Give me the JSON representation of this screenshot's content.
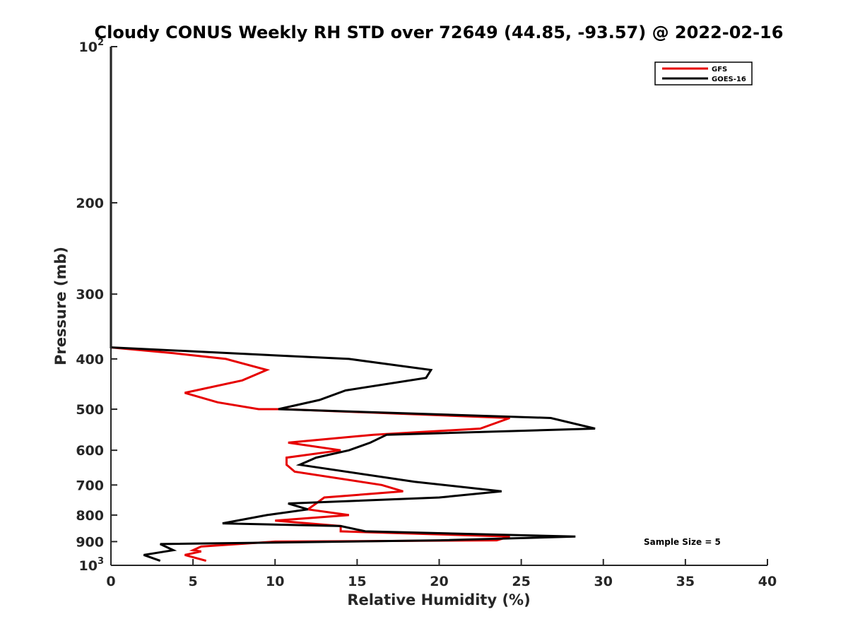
{
  "chart_data": {
    "type": "line",
    "title": "Cloudy CONUS Weekly RH STD over 72649 (44.85, -93.57) @ 2022-02-16",
    "xlabel": "Relative Humidity (%)",
    "ylabel": "Pressure (mb)",
    "xlim": [
      0,
      40
    ],
    "ylim": [
      100,
      1000
    ],
    "y_scale": "log",
    "y_reversed": true,
    "grid": false,
    "legend_position": "top-right",
    "x_ticks": [
      "0",
      "5",
      "10",
      "15",
      "20",
      "25",
      "30",
      "35",
      "40"
    ],
    "y_ticks": [
      {
        "value": 100,
        "base": "10",
        "exp": "2"
      },
      {
        "value": 200,
        "label": "200"
      },
      {
        "value": 300,
        "label": "300"
      },
      {
        "value": 400,
        "label": "400"
      },
      {
        "value": 500,
        "label": "500"
      },
      {
        "value": 600,
        "label": "600"
      },
      {
        "value": 700,
        "label": "700"
      },
      {
        "value": 800,
        "label": "800"
      },
      {
        "value": 900,
        "label": "900"
      },
      {
        "value": 1000,
        "base": "10",
        "exp": "3"
      }
    ],
    "series": [
      {
        "name": "GFS",
        "color": "#e60000",
        "points": [
          {
            "x": 0,
            "y": 100
          },
          {
            "x": 0,
            "y": 380
          },
          {
            "x": 3.8,
            "y": 390
          },
          {
            "x": 7,
            "y": 400
          },
          {
            "x": 9.5,
            "y": 420
          },
          {
            "x": 8,
            "y": 440
          },
          {
            "x": 4.5,
            "y": 465
          },
          {
            "x": 6.5,
            "y": 485
          },
          {
            "x": 9,
            "y": 500
          },
          {
            "x": 10.5,
            "y": 500
          },
          {
            "x": 24.3,
            "y": 520
          },
          {
            "x": 22.5,
            "y": 545
          },
          {
            "x": 16,
            "y": 560
          },
          {
            "x": 10.8,
            "y": 580
          },
          {
            "x": 14,
            "y": 600
          },
          {
            "x": 10.7,
            "y": 620
          },
          {
            "x": 10.7,
            "y": 640
          },
          {
            "x": 11.2,
            "y": 660
          },
          {
            "x": 16.5,
            "y": 700
          },
          {
            "x": 17.8,
            "y": 720
          },
          {
            "x": 13,
            "y": 740
          },
          {
            "x": 12.5,
            "y": 760
          },
          {
            "x": 12,
            "y": 780
          },
          {
            "x": 14.5,
            "y": 800
          },
          {
            "x": 10,
            "y": 820
          },
          {
            "x": 14,
            "y": 840
          },
          {
            "x": 14,
            "y": 860
          },
          {
            "x": 24.3,
            "y": 880
          },
          {
            "x": 23.5,
            "y": 895
          },
          {
            "x": 10,
            "y": 900
          },
          {
            "x": 5.5,
            "y": 920
          },
          {
            "x": 5,
            "y": 935
          },
          {
            "x": 5.5,
            "y": 940
          },
          {
            "x": 4.5,
            "y": 955
          },
          {
            "x": 5.8,
            "y": 980
          }
        ]
      },
      {
        "name": "GOES-16",
        "color": "#000000",
        "points": [
          {
            "x": 0,
            "y": 100
          },
          {
            "x": 0,
            "y": 380
          },
          {
            "x": 14.5,
            "y": 400
          },
          {
            "x": 19.5,
            "y": 420
          },
          {
            "x": 19.2,
            "y": 435
          },
          {
            "x": 14.3,
            "y": 460
          },
          {
            "x": 12.7,
            "y": 480
          },
          {
            "x": 10.2,
            "y": 500
          },
          {
            "x": 26.8,
            "y": 520
          },
          {
            "x": 29.5,
            "y": 545
          },
          {
            "x": 16.8,
            "y": 560
          },
          {
            "x": 15.8,
            "y": 580
          },
          {
            "x": 14.5,
            "y": 600
          },
          {
            "x": 12.5,
            "y": 620
          },
          {
            "x": 11.5,
            "y": 640
          },
          {
            "x": 18.5,
            "y": 690
          },
          {
            "x": 23.8,
            "y": 720
          },
          {
            "x": 20,
            "y": 740
          },
          {
            "x": 10.8,
            "y": 760
          },
          {
            "x": 12,
            "y": 780
          },
          {
            "x": 9.5,
            "y": 800
          },
          {
            "x": 6.8,
            "y": 830
          },
          {
            "x": 14,
            "y": 840
          },
          {
            "x": 15.5,
            "y": 860
          },
          {
            "x": 28.3,
            "y": 880
          },
          {
            "x": 20,
            "y": 895
          },
          {
            "x": 3,
            "y": 910
          },
          {
            "x": 3.8,
            "y": 935
          },
          {
            "x": 2,
            "y": 955
          },
          {
            "x": 3,
            "y": 980
          }
        ]
      }
    ],
    "annotation": "Sample Size = 5"
  }
}
